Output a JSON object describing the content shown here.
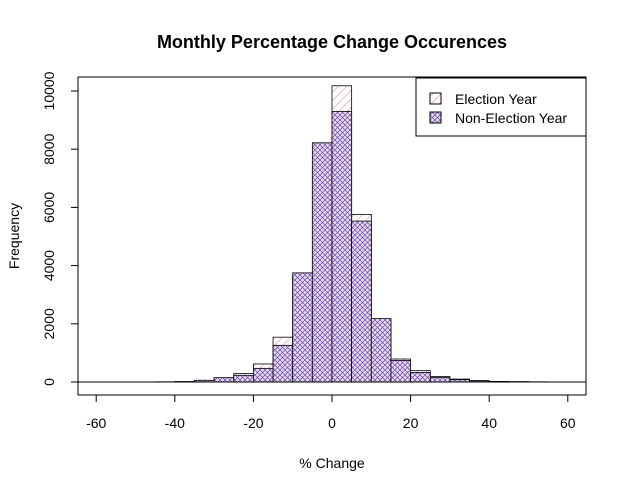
{
  "chart_data": {
    "type": "bar",
    "title": "Monthly Percentage Change Occurences",
    "xlabel": "% Change",
    "ylabel": "Frequency",
    "xlim": [
      -65,
      65
    ],
    "ylim": [
      -400,
      10300
    ],
    "x_ticks": [
      -60,
      -40,
      -20,
      0,
      20,
      40,
      60
    ],
    "x_tick_labels": [
      "-60",
      "-40",
      "-20",
      "0",
      "20",
      "40",
      "60"
    ],
    "y_ticks": [
      0,
      2000,
      4000,
      6000,
      8000,
      10000
    ],
    "y_tick_labels": [
      "0",
      "2000",
      "4000",
      "6000",
      "8000",
      "10000"
    ],
    "bin_edges": [
      -45,
      -40,
      -35,
      -30,
      -25,
      -20,
      -15,
      -10,
      -5,
      0,
      5,
      10,
      15,
      20,
      25,
      30,
      35,
      40,
      45,
      50,
      55
    ],
    "series": [
      {
        "name": "Election Year",
        "color": "#e8a0a8",
        "hatch": "diagonal-right",
        "values": [
          5,
          10,
          40,
          130,
          290,
          620,
          1540,
          3650,
          7540,
          10180,
          5760,
          2100,
          790,
          390,
          190,
          100,
          50,
          20,
          10,
          5
        ]
      },
      {
        "name": "Non-Election Year",
        "color": "#7070d8",
        "hatch": "cross",
        "values": [
          5,
          15,
          60,
          150,
          230,
          470,
          1260,
          3750,
          8220,
          9300,
          5530,
          2180,
          740,
          330,
          150,
          80,
          40,
          20,
          10,
          5
        ]
      }
    ],
    "legend": {
      "position": "top-right",
      "entries": [
        "Election Year",
        "Non-Election Year"
      ]
    },
    "grid": false
  }
}
